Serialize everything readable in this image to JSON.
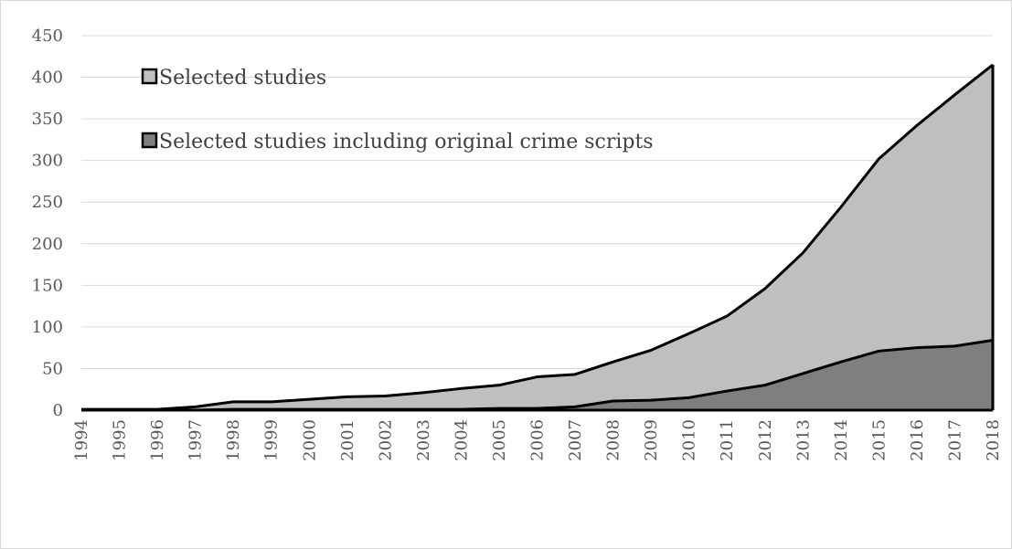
{
  "chart_data": {
    "type": "area",
    "title": "",
    "xlabel": "",
    "ylabel": "",
    "ylim": [
      0,
      450
    ],
    "yticks": [
      0,
      50,
      100,
      150,
      200,
      250,
      300,
      350,
      400,
      450
    ],
    "grid": true,
    "legend_position": "top-left",
    "categories": [
      "1994",
      "1995",
      "1996",
      "1997",
      "1998",
      "1999",
      "2000",
      "2001",
      "2002",
      "2003",
      "2004",
      "2005",
      "2006",
      "2007",
      "2008",
      "2009",
      "2010",
      "2011",
      "2012",
      "2013",
      "2014",
      "2015",
      "2016",
      "2017",
      "2018"
    ],
    "series": [
      {
        "name": "Selected studies",
        "color": "#bfbfbf",
        "values": [
          1,
          1,
          1,
          4,
          10,
          10,
          13,
          16,
          17,
          21,
          26,
          30,
          40,
          43,
          58,
          72,
          92,
          113,
          146,
          189,
          244,
          302,
          342,
          379,
          415
        ]
      },
      {
        "name": "Selected studies including original crime scripts",
        "color": "#7f7f7f",
        "values": [
          0,
          0,
          0,
          0,
          1,
          1,
          1,
          1,
          1,
          1,
          1,
          2,
          2,
          4,
          11,
          12,
          15,
          23,
          30,
          44,
          58,
          71,
          75,
          77,
          84
        ]
      }
    ]
  }
}
